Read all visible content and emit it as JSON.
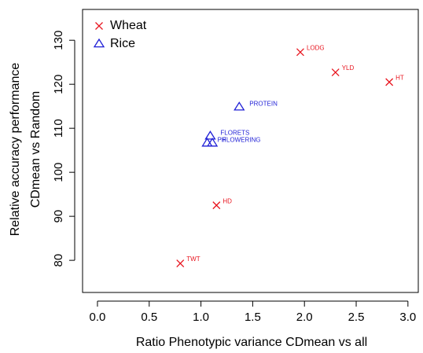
{
  "chart_data": {
    "type": "scatter",
    "xlabel": "Ratio Phenotypic variance CDmean vs all",
    "ylabel": [
      "Relative accuracy performance",
      "CDmean vs Random"
    ],
    "xlim": [
      -0.144,
      3.1
    ],
    "ylim": [
      72.7,
      137
    ],
    "xticks": [
      {
        "value": 0,
        "label": "0.0"
      },
      0.5,
      {
        "value": 1,
        "label": "1.0"
      },
      1.5,
      {
        "value": 2,
        "label": "2.0"
      },
      2.5,
      {
        "value": 3,
        "label": "3.0"
      }
    ],
    "yticks": [
      80,
      90,
      100,
      110,
      120,
      130
    ],
    "legend": "top-left",
    "series": [
      {
        "name": "Wheat",
        "color": "#e8141e",
        "marker": "x",
        "x": [
          1.96,
          2.3,
          2.82,
          1.15,
          0.8
        ],
        "y": [
          127.3,
          122.7,
          120.5,
          92.5,
          79.3
        ],
        "point_labels": [
          "LODG",
          "YLD",
          "HT",
          "HD",
          "TWT"
        ]
      },
      {
        "name": "Rice",
        "color": "#1f1fd6",
        "marker": "triangle",
        "x": [
          1.37,
          1.09,
          1.06,
          1.11
        ],
        "y": [
          114.8,
          108.2,
          106.6,
          106.6
        ],
        "point_labels": [
          "PROTEIN",
          "FLORETS",
          "PH",
          "FLOWERING"
        ]
      }
    ]
  }
}
